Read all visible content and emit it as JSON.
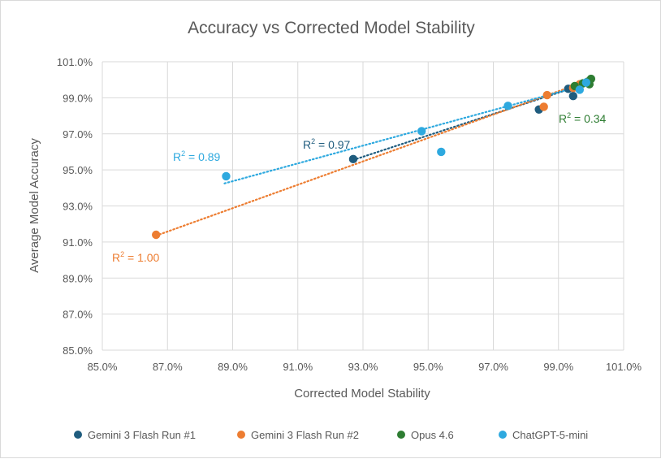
{
  "chart_data": {
    "type": "scatter",
    "title": "Accuracy vs Corrected Model Stability",
    "xlabel": "Corrected Model Stability",
    "ylabel": "Average Model Accuracy",
    "xlim": [
      85,
      101
    ],
    "ylim": [
      85,
      101
    ],
    "x_ticks": [
      "85.0%",
      "87.0%",
      "89.0%",
      "91.0%",
      "93.0%",
      "95.0%",
      "97.0%",
      "99.0%",
      "101.0%"
    ],
    "y_ticks": [
      "85.0%",
      "87.0%",
      "89.0%",
      "91.0%",
      "93.0%",
      "95.0%",
      "97.0%",
      "99.0%",
      "101.0%"
    ],
    "grid": "vertical-and-horizontal",
    "legend_position": "bottom",
    "series": [
      {
        "name": "Gemini 3 Flash Run #1",
        "color": "#1f5c7e",
        "points": [
          [
            92.7,
            95.6
          ],
          [
            98.4,
            98.35
          ],
          [
            99.3,
            99.5
          ],
          [
            99.45,
            99.1
          ],
          [
            99.55,
            99.6
          ]
        ],
        "trendline": [
          [
            92.7,
            95.55
          ],
          [
            99.7,
            99.7
          ]
        ],
        "r2_label": {
          "text": "R",
          "sup": "2",
          "value": " = 0.97"
        }
      },
      {
        "name": "Gemini 3 Flash Run #2",
        "color": "#ed7d31",
        "points": [
          [
            86.65,
            91.4
          ],
          [
            98.55,
            98.5
          ],
          [
            98.65,
            99.15
          ],
          [
            99.45,
            99.55
          ],
          [
            99.65,
            99.75
          ]
        ],
        "trendline": [
          [
            86.65,
            91.35
          ],
          [
            99.9,
            99.95
          ]
        ],
        "r2_label": {
          "text": "R",
          "sup": "2",
          "value": " = 1.00"
        }
      },
      {
        "name": "Opus 4.6",
        "color": "#2e7d32",
        "points": [
          [
            99.5,
            99.65
          ],
          [
            99.75,
            99.8
          ],
          [
            99.95,
            99.75
          ],
          [
            100.0,
            100.05
          ],
          [
            99.9,
            99.9
          ]
        ],
        "trendline": [
          [
            99.4,
            99.6
          ],
          [
            100.05,
            99.95
          ]
        ],
        "r2_label": {
          "text": "R",
          "sup": "2",
          "value": " = 0.34"
        }
      },
      {
        "name": "ChatGPT-5-mini",
        "color": "#2ea9df",
        "points": [
          [
            88.8,
            94.65
          ],
          [
            94.8,
            97.15
          ],
          [
            95.4,
            96.0
          ],
          [
            97.45,
            98.55
          ],
          [
            99.65,
            99.45
          ],
          [
            99.85,
            99.85
          ]
        ],
        "trendline": [
          [
            88.75,
            94.25
          ],
          [
            99.9,
            99.75
          ]
        ],
        "r2_label": {
          "text": "R",
          "sup": "2",
          "value": " = 0.89"
        }
      }
    ]
  }
}
